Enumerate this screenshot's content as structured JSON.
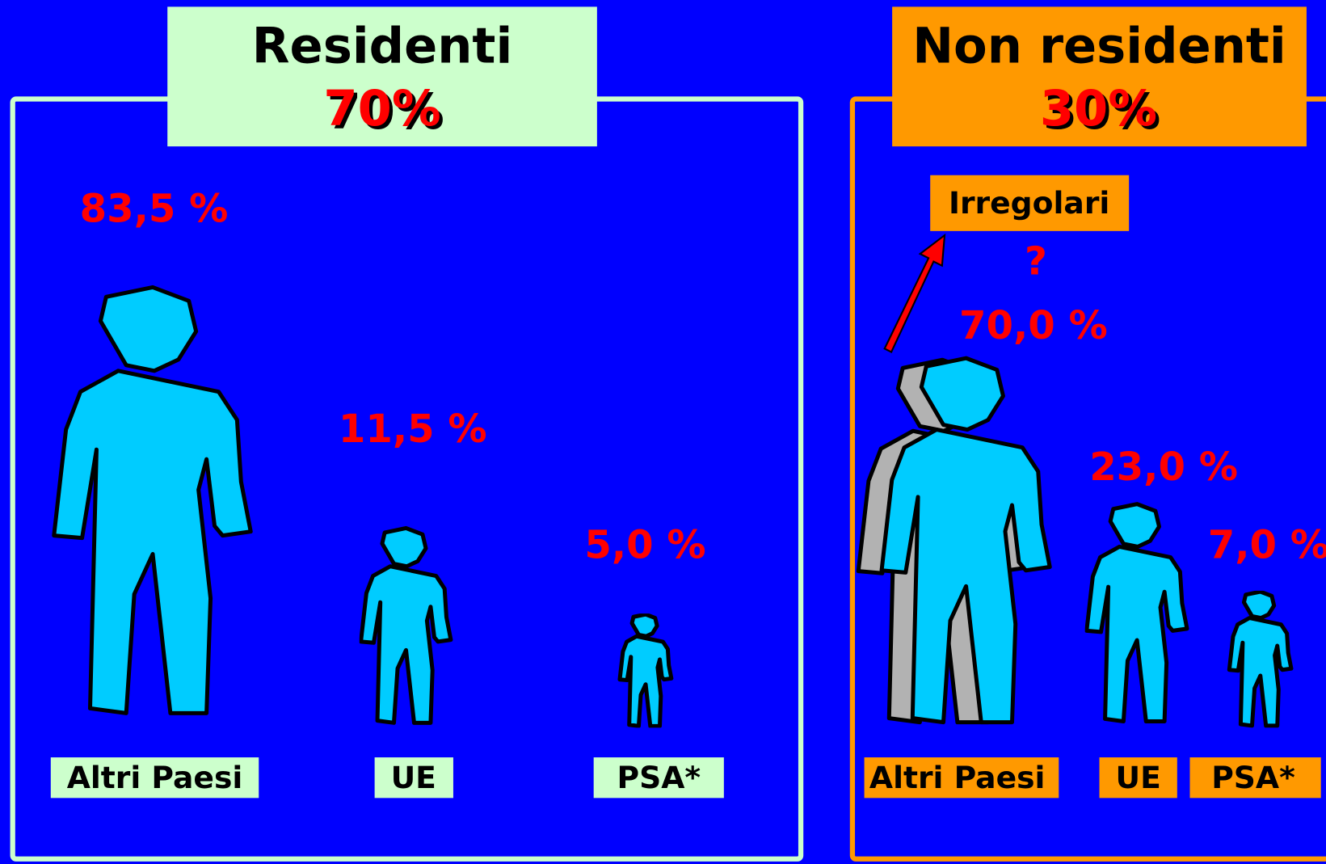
{
  "panels": [
    {
      "title": "Residenti",
      "share": "70%",
      "groups": [
        {
          "value": "83,5 %",
          "label": "Altri Paesi"
        },
        {
          "value": "11,5 %",
          "label": "UE"
        },
        {
          "value": "5,0 %",
          "label": "PSA*"
        }
      ]
    },
    {
      "title": "Non residenti",
      "share": "30%",
      "note": "Irregolari",
      "question": "?",
      "groups": [
        {
          "value": "70,0 %",
          "label": "Altri Paesi"
        },
        {
          "value": "23,0 %",
          "label": "UE"
        },
        {
          "value": "7,0 %",
          "label": "PSA*"
        }
      ]
    }
  ]
}
